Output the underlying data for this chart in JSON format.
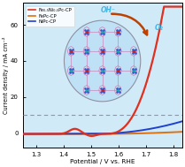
{
  "xlabel": "Potential / V vs. RHE",
  "ylabel": "Current density / mA cm⁻²",
  "xlim": [
    1.25,
    1.83
  ],
  "ylim": [
    -8,
    72
  ],
  "yticks": [
    0,
    20,
    40,
    60
  ],
  "xticks": [
    1.3,
    1.4,
    1.5,
    1.6,
    1.7,
    1.8
  ],
  "dashed_y": 10,
  "legend_labels": [
    "Fe₀.₅Ni₀.₅Pc-CP",
    "FePc-CP",
    "NiPc-CP"
  ],
  "legend_colors": [
    "#e03020",
    "#e07010",
    "#2040d0"
  ],
  "bg_color": "#d0eaf8",
  "oh_label": "OH⁻",
  "o2_label": "O₂",
  "arrow_color": "#c04000",
  "dash_color": "#8899aa",
  "figsize": [
    2.09,
    1.89
  ],
  "dpi": 100
}
